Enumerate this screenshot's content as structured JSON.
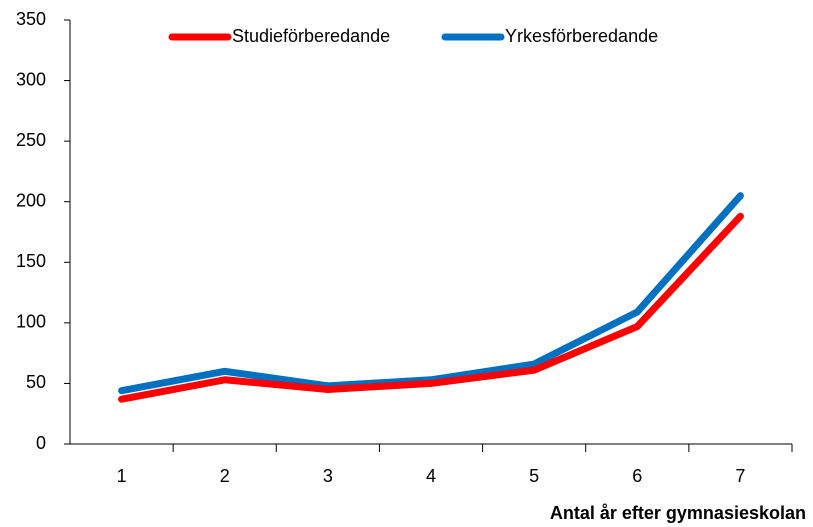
{
  "chart_data": {
    "type": "line",
    "x_label": "Antal år efter gymnasieskolan",
    "categories": [
      "1",
      "2",
      "3",
      "4",
      "5",
      "6",
      "7"
    ],
    "series": [
      {
        "name": "Studieförberedande",
        "color": "#ff0000",
        "values": [
          37,
          53,
          45,
          50,
          61,
          97,
          188
        ]
      },
      {
        "name": "Yrkesförberedande",
        "color": "#0070c0",
        "values": [
          44,
          60,
          48,
          53,
          66,
          109,
          205
        ]
      }
    ],
    "ylim": [
      0,
      350
    ],
    "yticks": [
      0,
      50,
      100,
      150,
      200,
      250,
      300,
      350
    ],
    "legend": "top",
    "grid": false
  }
}
